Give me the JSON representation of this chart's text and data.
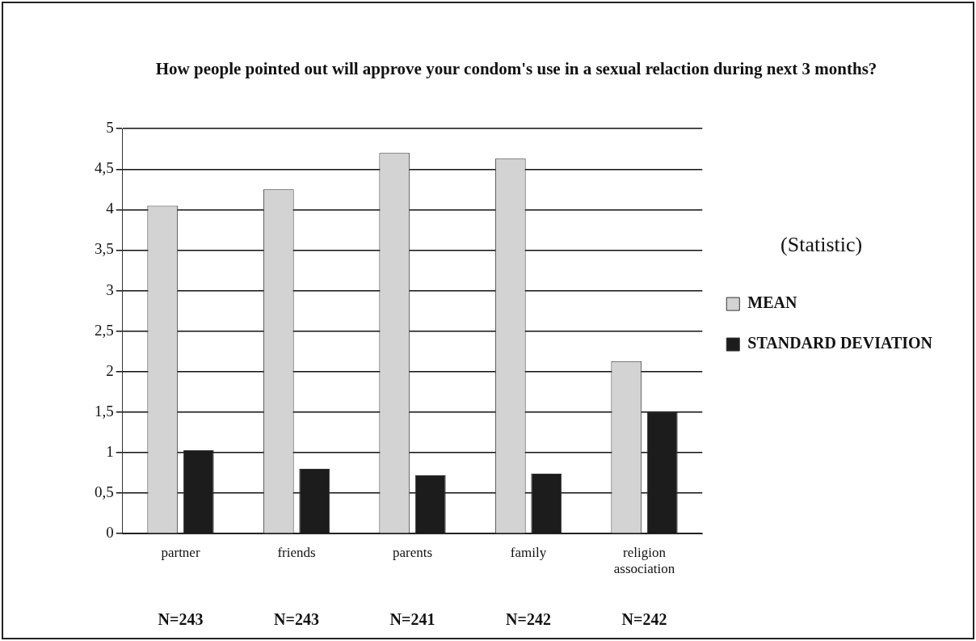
{
  "chart_data": {
    "type": "bar",
    "title": "How people pointed out will approve your condom's use in a sexual relaction during next 3 months?",
    "categories": [
      "partner",
      "friends",
      "parents",
      "family",
      "religion association"
    ],
    "series": [
      {
        "name": "MEAN",
        "color": "#d3d3d3",
        "values": [
          4.05,
          4.25,
          4.7,
          4.63,
          2.13
        ]
      },
      {
        "name": "STANDARD DEVIATION",
        "color": "#1c1c1c",
        "values": [
          1.03,
          0.8,
          0.72,
          0.74,
          1.5
        ]
      }
    ],
    "ylim": [
      0,
      5
    ],
    "yticks": [
      0,
      {
        "value": 0.5,
        "label": "0,5"
      },
      1,
      {
        "value": 1.5,
        "label": "1,5"
      },
      2,
      {
        "value": 2.5,
        "label": "2,5"
      },
      3,
      {
        "value": 3.5,
        "label": "3,5"
      },
      4,
      {
        "value": 4.5,
        "label": "4,5"
      },
      5
    ],
    "grid": "y",
    "legend": "right",
    "legend_title": "(Statistic)",
    "annotations": [
      "N=243",
      "N=243",
      "N=241",
      "N=242",
      "N=242"
    ]
  }
}
